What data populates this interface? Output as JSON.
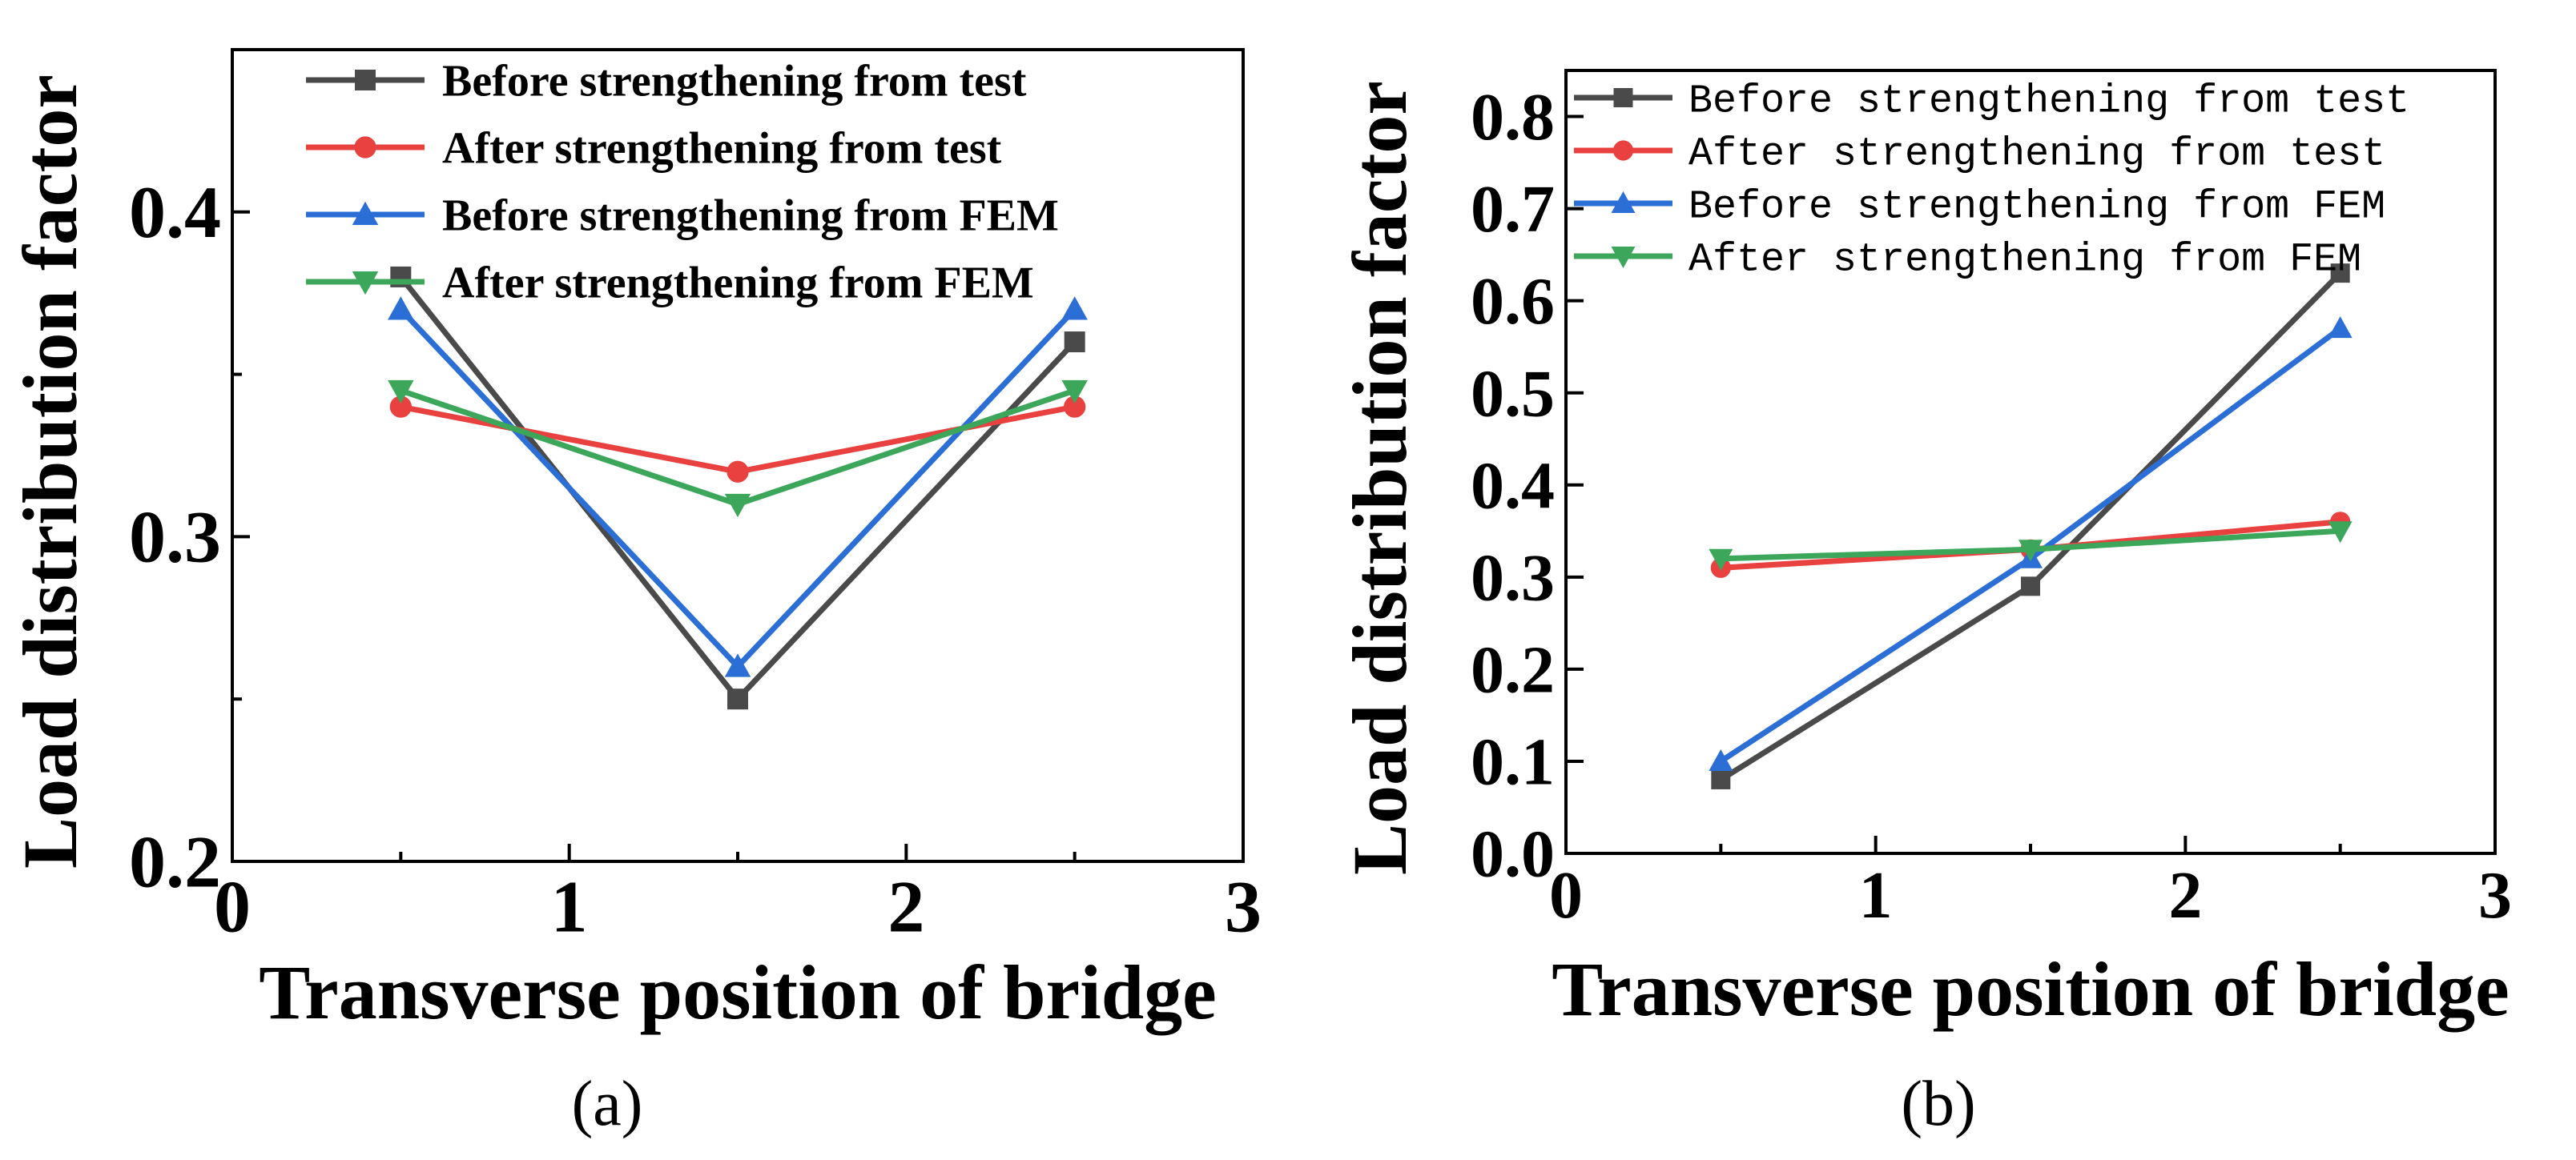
{
  "chart_data": [
    {
      "type": "line",
      "panel_label": "(a)",
      "xlabel": "Transverse position of bridge",
      "ylabel": "Load distribution factor",
      "xlim": [
        0,
        3
      ],
      "ylim": [
        0.2,
        0.45
      ],
      "x_ticks": [
        0,
        1,
        2,
        3
      ],
      "x_tick_labels": [
        "0",
        "1",
        "2",
        "3"
      ],
      "y_ticks": [
        0.2,
        0.3,
        0.4
      ],
      "y_tick_labels": [
        "0.2",
        "0.3",
        "0.4"
      ],
      "x_minor_ticks": [
        0.5,
        1.5,
        2.5
      ],
      "y_minor_ticks": [
        0.25,
        0.35
      ],
      "grid": false,
      "legend_position": "top",
      "x": [
        0.5,
        1.5,
        2.5
      ],
      "series": [
        {
          "name": "Before strengthening from test",
          "values": [
            0.38,
            0.25,
            0.36
          ],
          "color": "#4a4a4a",
          "marker": "square"
        },
        {
          "name": "After strengthening from test",
          "values": [
            0.34,
            0.32,
            0.34
          ],
          "color": "#e8413f",
          "marker": "circle"
        },
        {
          "name": "Before strengthening from FEM",
          "values": [
            0.37,
            0.26,
            0.37
          ],
          "color": "#2b6fd6",
          "marker": "triangle-up"
        },
        {
          "name": "After strengthening from FEM",
          "values": [
            0.345,
            0.31,
            0.345
          ],
          "color": "#3ca65a",
          "marker": "triangle-down"
        }
      ]
    },
    {
      "type": "line",
      "panel_label": "(b)",
      "xlabel": "Transverse position of bridge",
      "ylabel": "Load distribution factor",
      "xlim": [
        0,
        3
      ],
      "ylim": [
        0,
        0.85
      ],
      "x_ticks": [
        0,
        1,
        2,
        3
      ],
      "x_tick_labels": [
        "0",
        "1",
        "2",
        "3"
      ],
      "y_ticks": [
        0,
        0.1,
        0.2,
        0.3,
        0.4,
        0.5,
        0.6,
        0.7,
        0.8
      ],
      "y_tick_labels": [
        "0.0",
        "0.1",
        "0.2",
        "0.3",
        "0.4",
        "0.5",
        "0.6",
        "0.7",
        "0.8"
      ],
      "x_minor_ticks": [
        0.5,
        1.5,
        2.5
      ],
      "y_minor_ticks": [],
      "grid": false,
      "legend_position": "top-left",
      "x": [
        0.5,
        1.5,
        2.5
      ],
      "series": [
        {
          "name": "Before strengthening from test",
          "values": [
            0.08,
            0.29,
            0.63
          ],
          "color": "#4a4a4a",
          "marker": "square"
        },
        {
          "name": "After strengthening from test",
          "values": [
            0.31,
            0.33,
            0.36
          ],
          "color": "#e8413f",
          "marker": "circle"
        },
        {
          "name": "Before strengthening from FEM",
          "values": [
            0.1,
            0.32,
            0.57
          ],
          "color": "#2b6fd6",
          "marker": "triangle-up"
        },
        {
          "name": "After strengthening from FEM",
          "values": [
            0.32,
            0.33,
            0.35
          ],
          "color": "#3ca65a",
          "marker": "triangle-down"
        }
      ]
    }
  ]
}
